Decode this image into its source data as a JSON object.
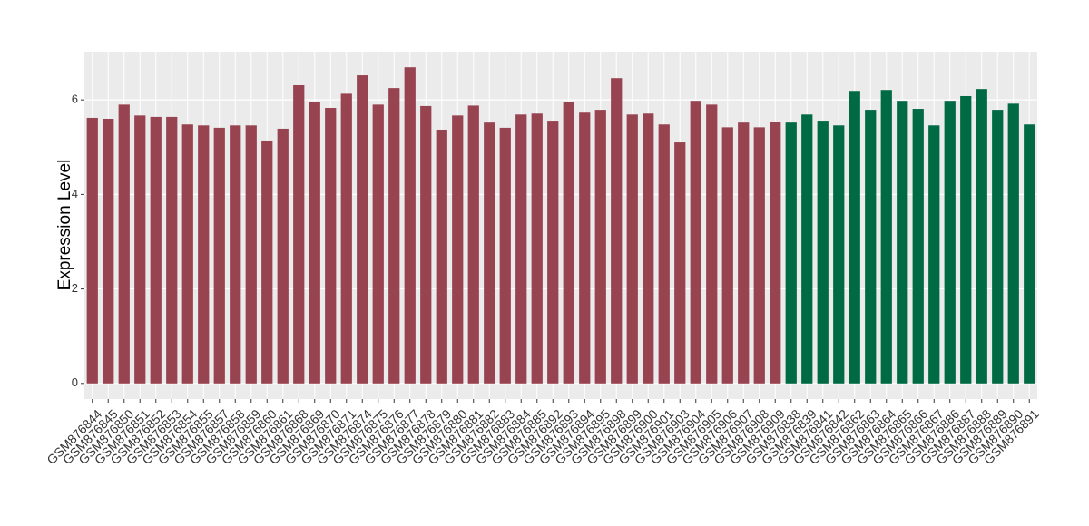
{
  "chart_data": {
    "type": "bar",
    "y_label": "Expression Level",
    "categories": [
      "GSM876844",
      "GSM876845",
      "GSM876850",
      "GSM876851",
      "GSM876852",
      "GSM876853",
      "GSM876854",
      "GSM876855",
      "GSM876857",
      "GSM876858",
      "GSM876859",
      "GSM876860",
      "GSM876861",
      "GSM876868",
      "GSM876869",
      "GSM876870",
      "GSM876871",
      "GSM876874",
      "GSM876875",
      "GSM876876",
      "GSM876877",
      "GSM876878",
      "GSM876879",
      "GSM876880",
      "GSM876881",
      "GSM876882",
      "GSM876883",
      "GSM876884",
      "GSM876885",
      "GSM876892",
      "GSM876893",
      "GSM876894",
      "GSM876895",
      "GSM876898",
      "GSM876899",
      "GSM876900",
      "GSM876901",
      "GSM876903",
      "GSM876904",
      "GSM876905",
      "GSM876906",
      "GSM876907",
      "GSM876908",
      "GSM876909",
      "GSM876838",
      "GSM876839",
      "GSM876841",
      "GSM876842",
      "GSM876862",
      "GSM876863",
      "GSM876864",
      "GSM876865",
      "GSM876866",
      "GSM876867",
      "GSM876886",
      "GSM876887",
      "GSM876888",
      "GSM876889",
      "GSM876890",
      "GSM876891"
    ],
    "values": [
      5.62,
      5.6,
      5.9,
      5.67,
      5.64,
      5.64,
      5.48,
      5.46,
      5.41,
      5.46,
      5.46,
      5.14,
      5.39,
      6.31,
      5.96,
      5.83,
      6.13,
      6.52,
      5.9,
      6.25,
      6.69,
      5.87,
      5.37,
      5.67,
      5.88,
      5.52,
      5.41,
      5.69,
      5.71,
      5.56,
      5.96,
      5.73,
      5.79,
      6.46,
      5.69,
      5.71,
      5.48,
      5.1,
      5.98,
      5.9,
      5.42,
      5.52,
      5.42,
      5.54,
      5.52,
      5.69,
      5.56,
      5.46,
      6.19,
      5.79,
      6.21,
      5.98,
      5.81,
      5.46,
      5.98,
      6.08,
      6.23,
      5.79,
      5.92,
      5.48
    ],
    "colors": [
      "#984450",
      "#984450",
      "#984450",
      "#984450",
      "#984450",
      "#984450",
      "#984450",
      "#984450",
      "#984450",
      "#984450",
      "#984450",
      "#984450",
      "#984450",
      "#984450",
      "#984450",
      "#984450",
      "#984450",
      "#984450",
      "#984450",
      "#984450",
      "#984450",
      "#984450",
      "#984450",
      "#984450",
      "#984450",
      "#984450",
      "#984450",
      "#984450",
      "#984450",
      "#984450",
      "#984450",
      "#984450",
      "#984450",
      "#984450",
      "#984450",
      "#984450",
      "#984450",
      "#984450",
      "#984450",
      "#984450",
      "#984450",
      "#984450",
      "#984450",
      "#984450",
      "#006a45",
      "#006a45",
      "#006a45",
      "#006a45",
      "#006a45",
      "#006a45",
      "#006a45",
      "#006a45",
      "#006a45",
      "#006a45",
      "#006a45",
      "#006a45",
      "#006a45",
      "#006a45",
      "#006a45",
      "#006a45"
    ],
    "ylim": [
      -0.33,
      7.02
    ],
    "yticks": [
      0,
      2,
      4,
      6
    ],
    "grid": true
  }
}
